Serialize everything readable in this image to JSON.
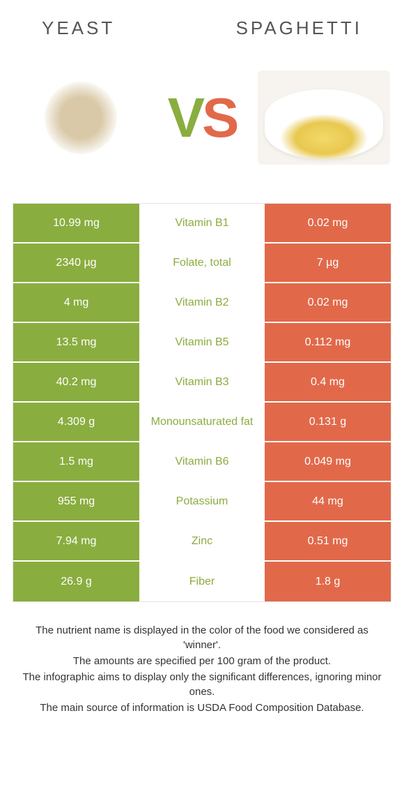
{
  "colors": {
    "left_bg": "#8aad3f",
    "right_bg": "#e1694a",
    "mid_bg": "#ffffff",
    "cell_text": "#ffffff",
    "winner_left_text": "#8aad3f",
    "winner_right_text": "#e1694a"
  },
  "header": {
    "left_title": "Yeast",
    "right_title": "Spaghetti"
  },
  "vs": {
    "v": "V",
    "s": "S"
  },
  "rows": [
    {
      "left": "10.99 mg",
      "label": "Vitamin B1",
      "right": "0.02 mg",
      "winner": "left"
    },
    {
      "left": "2340 µg",
      "label": "Folate, total",
      "right": "7 µg",
      "winner": "left"
    },
    {
      "left": "4 mg",
      "label": "Vitamin B2",
      "right": "0.02 mg",
      "winner": "left"
    },
    {
      "left": "13.5 mg",
      "label": "Vitamin B5",
      "right": "0.112 mg",
      "winner": "left"
    },
    {
      "left": "40.2 mg",
      "label": "Vitamin B3",
      "right": "0.4 mg",
      "winner": "left"
    },
    {
      "left": "4.309 g",
      "label": "Monounsaturated fat",
      "right": "0.131 g",
      "winner": "left"
    },
    {
      "left": "1.5 mg",
      "label": "Vitamin B6",
      "right": "0.049 mg",
      "winner": "left"
    },
    {
      "left": "955 mg",
      "label": "Potassium",
      "right": "44 mg",
      "winner": "left"
    },
    {
      "left": "7.94 mg",
      "label": "Zinc",
      "right": "0.51 mg",
      "winner": "left"
    },
    {
      "left": "26.9 g",
      "label": "Fiber",
      "right": "1.8 g",
      "winner": "left"
    }
  ],
  "footer": {
    "line1": "The nutrient name is displayed in the color of the food we considered as 'winner'.",
    "line2": "The amounts are specified per 100 gram of the product.",
    "line3": "The infographic aims to display only the significant differences, ignoring minor ones.",
    "line4": "The main source of information is USDA Food Composition Database."
  }
}
